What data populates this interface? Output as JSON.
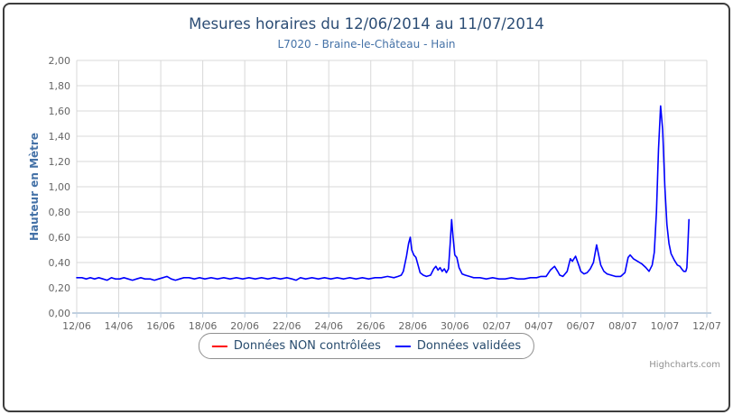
{
  "chart_data": {
    "type": "line",
    "title": "Mesures horaires du 12/06/2014 au 11/07/2014",
    "subtitle": "L7020 - Braine-le-Château - Hain",
    "xlabel": "",
    "ylabel": "Hauteur en Mètre",
    "x_unit": "days since 12/06/2014 00:00",
    "xlim": [
      0,
      30
    ],
    "ylim": [
      0,
      2
    ],
    "grid": true,
    "legend_position": "bottom",
    "x_ticks": [
      {
        "day": 0,
        "label": "12/06"
      },
      {
        "day": 2,
        "label": "14/06"
      },
      {
        "day": 4,
        "label": "16/06"
      },
      {
        "day": 6,
        "label": "18/06"
      },
      {
        "day": 8,
        "label": "20/06"
      },
      {
        "day": 10,
        "label": "22/06"
      },
      {
        "day": 12,
        "label": "24/06"
      },
      {
        "day": 14,
        "label": "26/06"
      },
      {
        "day": 16,
        "label": "28/06"
      },
      {
        "day": 18,
        "label": "30/06"
      },
      {
        "day": 20,
        "label": "02/07"
      },
      {
        "day": 22,
        "label": "04/07"
      },
      {
        "day": 24,
        "label": "06/07"
      },
      {
        "day": 26,
        "label": "08/07"
      },
      {
        "day": 28,
        "label": "10/07"
      },
      {
        "day": 30,
        "label": "12/07"
      }
    ],
    "y_ticks": [
      {
        "value": 0.0,
        "label": "0,00"
      },
      {
        "value": 0.2,
        "label": "0,20"
      },
      {
        "value": 0.4,
        "label": "0,40"
      },
      {
        "value": 0.6,
        "label": "0,60"
      },
      {
        "value": 0.8,
        "label": "0,80"
      },
      {
        "value": 1.0,
        "label": "1,00"
      },
      {
        "value": 1.2,
        "label": "1,20"
      },
      {
        "value": 1.4,
        "label": "1,40"
      },
      {
        "value": 1.6,
        "label": "1,60"
      },
      {
        "value": 1.8,
        "label": "1,80"
      },
      {
        "value": 2.0,
        "label": "2,00"
      }
    ],
    "series": [
      {
        "name": "Données NON contrôlées",
        "color": "#ff0000",
        "points": []
      },
      {
        "name": "Données validées",
        "color": "#0000ff",
        "points": [
          [
            0,
            0.28
          ],
          [
            0.25,
            0.28
          ],
          [
            0.45,
            0.27
          ],
          [
            0.65,
            0.28
          ],
          [
            0.85,
            0.27
          ],
          [
            1.05,
            0.28
          ],
          [
            1.25,
            0.27
          ],
          [
            1.45,
            0.26
          ],
          [
            1.65,
            0.28
          ],
          [
            1.85,
            0.27
          ],
          [
            2.05,
            0.27
          ],
          [
            2.25,
            0.28
          ],
          [
            2.45,
            0.27
          ],
          [
            2.65,
            0.26
          ],
          [
            2.85,
            0.27
          ],
          [
            3.05,
            0.28
          ],
          [
            3.25,
            0.27
          ],
          [
            3.5,
            0.27
          ],
          [
            3.7,
            0.26
          ],
          [
            3.9,
            0.27
          ],
          [
            4.1,
            0.28
          ],
          [
            4.3,
            0.29
          ],
          [
            4.5,
            0.27
          ],
          [
            4.7,
            0.26
          ],
          [
            4.9,
            0.27
          ],
          [
            5.1,
            0.28
          ],
          [
            5.35,
            0.28
          ],
          [
            5.6,
            0.27
          ],
          [
            5.85,
            0.28
          ],
          [
            6.1,
            0.27
          ],
          [
            6.4,
            0.28
          ],
          [
            6.7,
            0.27
          ],
          [
            7.0,
            0.28
          ],
          [
            7.3,
            0.27
          ],
          [
            7.6,
            0.28
          ],
          [
            7.9,
            0.27
          ],
          [
            8.2,
            0.28
          ],
          [
            8.5,
            0.27
          ],
          [
            8.8,
            0.28
          ],
          [
            9.1,
            0.27
          ],
          [
            9.4,
            0.28
          ],
          [
            9.7,
            0.27
          ],
          [
            10.0,
            0.28
          ],
          [
            10.25,
            0.27
          ],
          [
            10.45,
            0.26
          ],
          [
            10.65,
            0.28
          ],
          [
            10.9,
            0.27
          ],
          [
            11.2,
            0.28
          ],
          [
            11.5,
            0.27
          ],
          [
            11.8,
            0.28
          ],
          [
            12.1,
            0.27
          ],
          [
            12.4,
            0.28
          ],
          [
            12.7,
            0.27
          ],
          [
            13.0,
            0.28
          ],
          [
            13.3,
            0.27
          ],
          [
            13.6,
            0.28
          ],
          [
            13.9,
            0.27
          ],
          [
            14.2,
            0.28
          ],
          [
            14.5,
            0.28
          ],
          [
            14.8,
            0.29
          ],
          [
            15.1,
            0.28
          ],
          [
            15.3,
            0.29
          ],
          [
            15.45,
            0.3
          ],
          [
            15.55,
            0.33
          ],
          [
            15.7,
            0.45
          ],
          [
            15.8,
            0.55
          ],
          [
            15.88,
            0.6
          ],
          [
            15.95,
            0.5
          ],
          [
            16.05,
            0.46
          ],
          [
            16.15,
            0.44
          ],
          [
            16.25,
            0.38
          ],
          [
            16.35,
            0.32
          ],
          [
            16.5,
            0.3
          ],
          [
            16.65,
            0.29
          ],
          [
            16.85,
            0.3
          ],
          [
            17.0,
            0.35
          ],
          [
            17.1,
            0.37
          ],
          [
            17.2,
            0.34
          ],
          [
            17.3,
            0.36
          ],
          [
            17.4,
            0.33
          ],
          [
            17.5,
            0.35
          ],
          [
            17.6,
            0.32
          ],
          [
            17.7,
            0.35
          ],
          [
            17.78,
            0.55
          ],
          [
            17.85,
            0.74
          ],
          [
            17.92,
            0.6
          ],
          [
            18.0,
            0.46
          ],
          [
            18.1,
            0.44
          ],
          [
            18.2,
            0.36
          ],
          [
            18.35,
            0.31
          ],
          [
            18.5,
            0.3
          ],
          [
            18.7,
            0.29
          ],
          [
            18.9,
            0.28
          ],
          [
            19.2,
            0.28
          ],
          [
            19.5,
            0.27
          ],
          [
            19.8,
            0.28
          ],
          [
            20.1,
            0.27
          ],
          [
            20.4,
            0.27
          ],
          [
            20.7,
            0.28
          ],
          [
            21.0,
            0.27
          ],
          [
            21.3,
            0.27
          ],
          [
            21.6,
            0.28
          ],
          [
            21.9,
            0.28
          ],
          [
            22.1,
            0.29
          ],
          [
            22.35,
            0.29
          ],
          [
            22.55,
            0.34
          ],
          [
            22.75,
            0.37
          ],
          [
            22.9,
            0.33
          ],
          [
            23.0,
            0.3
          ],
          [
            23.15,
            0.29
          ],
          [
            23.35,
            0.33
          ],
          [
            23.5,
            0.43
          ],
          [
            23.6,
            0.41
          ],
          [
            23.75,
            0.45
          ],
          [
            23.9,
            0.38
          ],
          [
            24.0,
            0.33
          ],
          [
            24.15,
            0.31
          ],
          [
            24.3,
            0.32
          ],
          [
            24.45,
            0.35
          ],
          [
            24.6,
            0.4
          ],
          [
            24.75,
            0.54
          ],
          [
            24.85,
            0.46
          ],
          [
            24.95,
            0.38
          ],
          [
            25.1,
            0.33
          ],
          [
            25.25,
            0.31
          ],
          [
            25.45,
            0.3
          ],
          [
            25.65,
            0.29
          ],
          [
            25.9,
            0.29
          ],
          [
            26.1,
            0.32
          ],
          [
            26.25,
            0.44
          ],
          [
            26.35,
            0.46
          ],
          [
            26.5,
            0.43
          ],
          [
            26.7,
            0.41
          ],
          [
            26.9,
            0.39
          ],
          [
            27.1,
            0.36
          ],
          [
            27.25,
            0.33
          ],
          [
            27.4,
            0.38
          ],
          [
            27.5,
            0.48
          ],
          [
            27.6,
            0.8
          ],
          [
            27.7,
            1.3
          ],
          [
            27.8,
            1.64
          ],
          [
            27.9,
            1.45
          ],
          [
            28.0,
            1.0
          ],
          [
            28.1,
            0.7
          ],
          [
            28.2,
            0.55
          ],
          [
            28.3,
            0.47
          ],
          [
            28.45,
            0.42
          ],
          [
            28.6,
            0.38
          ],
          [
            28.72,
            0.37
          ],
          [
            28.8,
            0.35
          ],
          [
            28.9,
            0.33
          ],
          [
            29.0,
            0.33
          ],
          [
            29.05,
            0.36
          ],
          [
            29.1,
            0.55
          ],
          [
            29.15,
            0.74
          ]
        ]
      }
    ]
  },
  "legend": {
    "items": [
      {
        "label": "Données NON contrôlées",
        "color": "#ff0000"
      },
      {
        "label": "Données validées",
        "color": "#0000ff"
      }
    ]
  },
  "credits": "Highcharts.com",
  "colors": {
    "title": "#2c4d75",
    "subtitle": "#4572a7",
    "y_axis_title": "#4572a7",
    "axis_labels": "#666666",
    "gridline": "#d8d8d8",
    "axis_line": "#c0d0e0",
    "legend_text": "#274b6d",
    "legend_border": "#909090",
    "credits": "#909090"
  }
}
